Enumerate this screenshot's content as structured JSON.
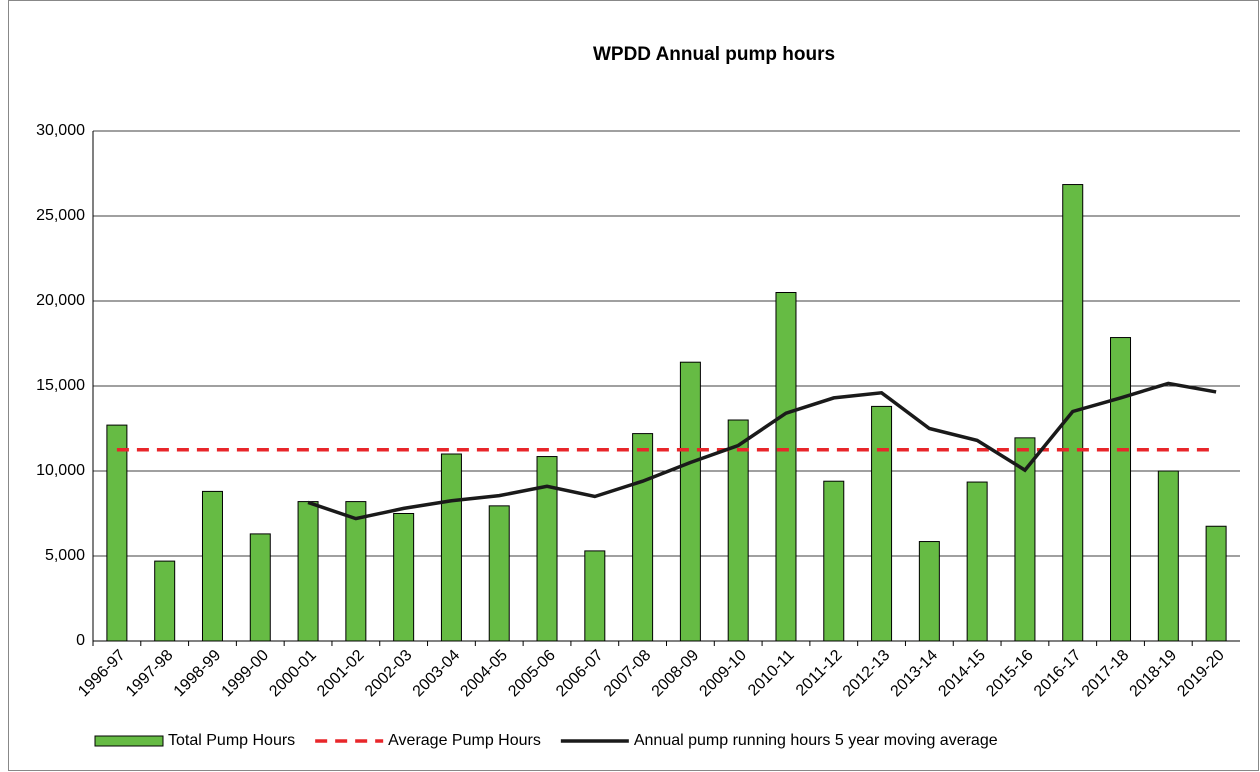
{
  "chart_data": {
    "type": "bar",
    "title": "WPDD Annual pump hours",
    "categories": [
      "1996-97",
      "1997-98",
      "1998-99",
      "1999-00",
      "2000-01",
      "2001-02",
      "2002-03",
      "2003-04",
      "2004-05",
      "2005-06",
      "2006-07",
      "2007-08",
      "2008-09",
      "2009-10",
      "2010-11",
      "2011-12",
      "2012-13",
      "2013-14",
      "2014-15",
      "2015-16",
      "2016-17",
      "2017-18",
      "2018-19",
      "2019-20"
    ],
    "series": [
      {
        "name": "Total Pump Hours",
        "type": "bar",
        "color": "#66bb44",
        "values": [
          12700,
          4700,
          8800,
          6300,
          8200,
          8200,
          7500,
          11000,
          7950,
          10850,
          5300,
          12200,
          16400,
          13000,
          20500,
          9400,
          13800,
          5850,
          9350,
          11950,
          26850,
          17850,
          10000,
          6750
        ]
      },
      {
        "name": "Average Pump Hours",
        "type": "line",
        "style": "dashed",
        "color": "#e8262a",
        "values": [
          11250,
          11250,
          11250,
          11250,
          11250,
          11250,
          11250,
          11250,
          11250,
          11250,
          11250,
          11250,
          11250,
          11250,
          11250,
          11250,
          11250,
          11250,
          11250,
          11250,
          11250,
          11250,
          11250,
          11250
        ]
      },
      {
        "name": "Annual pump running hours 5 year moving average",
        "type": "line",
        "style": "solid",
        "color": "#1a1a1a",
        "values": [
          null,
          null,
          null,
          null,
          8150,
          7200,
          7800,
          8250,
          8550,
          9100,
          8500,
          9400,
          10500,
          11500,
          13400,
          14300,
          14600,
          12500,
          11800,
          10050,
          13500,
          14300,
          15150,
          14650
        ]
      }
    ],
    "ylim": [
      0,
      30000
    ],
    "yticks": [
      0,
      {
        "value": 5000,
        "label": "5,000"
      },
      {
        "value": 10000,
        "label": "10,000"
      },
      {
        "value": 15000,
        "label": "15,000"
      },
      {
        "value": 20000,
        "label": "20,000"
      },
      {
        "value": 25000,
        "label": "25,000"
      },
      {
        "value": 30000,
        "label": "30,000"
      }
    ],
    "grid": true,
    "legend": "bottom"
  }
}
